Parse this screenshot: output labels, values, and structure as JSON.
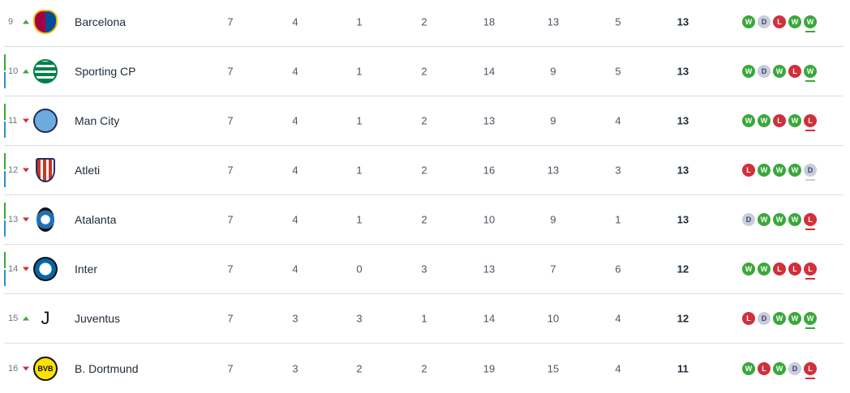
{
  "colors": {
    "win": "#3aa83a",
    "loss": "#d0303a",
    "draw": "#c8ccdc",
    "qual_green": "#3aa83a",
    "qual_blue": "#2b8fd0"
  },
  "rows": [
    {
      "pos": "9",
      "trend": "up",
      "team": "Barcelona",
      "logo": "barcelona-crest",
      "p": "7",
      "w": "4",
      "d": "1",
      "l": "2",
      "gf": "18",
      "ga": "13",
      "gd": "5",
      "pts": "13",
      "form": [
        "W",
        "D",
        "L",
        "W",
        "W"
      ],
      "marker": false
    },
    {
      "pos": "10",
      "trend": "up",
      "team": "Sporting CP",
      "logo": "sporting-crest",
      "p": "7",
      "w": "4",
      "d": "1",
      "l": "2",
      "gf": "14",
      "ga": "9",
      "gd": "5",
      "pts": "13",
      "form": [
        "W",
        "D",
        "W",
        "L",
        "W"
      ],
      "marker": true
    },
    {
      "pos": "11",
      "trend": "down",
      "team": "Man City",
      "logo": "man-city-crest",
      "p": "7",
      "w": "4",
      "d": "1",
      "l": "2",
      "gf": "13",
      "ga": "9",
      "gd": "4",
      "pts": "13",
      "form": [
        "W",
        "W",
        "L",
        "W",
        "L"
      ],
      "marker": true
    },
    {
      "pos": "12",
      "trend": "down",
      "team": "Atleti",
      "logo": "atleti-crest",
      "p": "7",
      "w": "4",
      "d": "1",
      "l": "2",
      "gf": "16",
      "ga": "13",
      "gd": "3",
      "pts": "13",
      "form": [
        "L",
        "W",
        "W",
        "W",
        "D"
      ],
      "marker": true
    },
    {
      "pos": "13",
      "trend": "down",
      "team": "Atalanta",
      "logo": "atalanta-crest",
      "p": "7",
      "w": "4",
      "d": "1",
      "l": "2",
      "gf": "10",
      "ga": "9",
      "gd": "1",
      "pts": "13",
      "form": [
        "D",
        "W",
        "W",
        "W",
        "L"
      ],
      "marker": true
    },
    {
      "pos": "14",
      "trend": "down",
      "team": "Inter",
      "logo": "inter-crest",
      "p": "7",
      "w": "4",
      "d": "0",
      "l": "3",
      "gf": "13",
      "ga": "7",
      "gd": "6",
      "pts": "12",
      "form": [
        "W",
        "W",
        "L",
        "L",
        "L"
      ],
      "marker": true
    },
    {
      "pos": "15",
      "trend": "up",
      "team": "Juventus",
      "logo": "juventus-crest",
      "p": "7",
      "w": "3",
      "d": "3",
      "l": "1",
      "gf": "14",
      "ga": "10",
      "gd": "4",
      "pts": "12",
      "form": [
        "L",
        "D",
        "W",
        "W",
        "W"
      ],
      "marker": false
    },
    {
      "pos": "16",
      "trend": "down",
      "team": "B. Dortmund",
      "logo": "dortmund-crest",
      "p": "7",
      "w": "3",
      "d": "2",
      "l": "2",
      "gf": "19",
      "ga": "15",
      "gd": "4",
      "pts": "11",
      "form": [
        "W",
        "L",
        "W",
        "D",
        "L"
      ],
      "marker": false
    }
  ]
}
